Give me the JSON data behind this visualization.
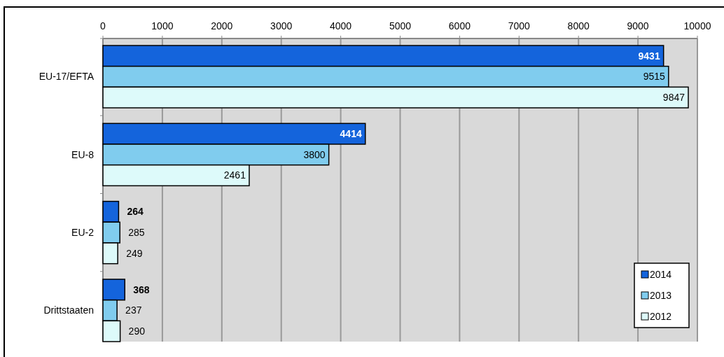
{
  "chart_data": {
    "type": "bar",
    "orientation": "horizontal",
    "categories": [
      "EU-17/EFTA",
      "EU-8",
      "EU-2",
      "Drittstaaten"
    ],
    "series": [
      {
        "name": "2014",
        "color": "#1464dc",
        "values": [
          9431,
          4414,
          264,
          368
        ]
      },
      {
        "name": "2013",
        "color": "#80ccee",
        "values": [
          9515,
          3800,
          285,
          237
        ]
      },
      {
        "name": "2012",
        "color": "#ddfafa",
        "values": [
          9847,
          2461,
          249,
          290
        ]
      }
    ],
    "xlim": [
      0,
      10000
    ],
    "xticks": [
      0,
      1000,
      2000,
      3000,
      4000,
      5000,
      6000,
      7000,
      8000,
      9000,
      10000
    ],
    "grid": "x",
    "legend": "bottom right",
    "data_labels": true
  }
}
